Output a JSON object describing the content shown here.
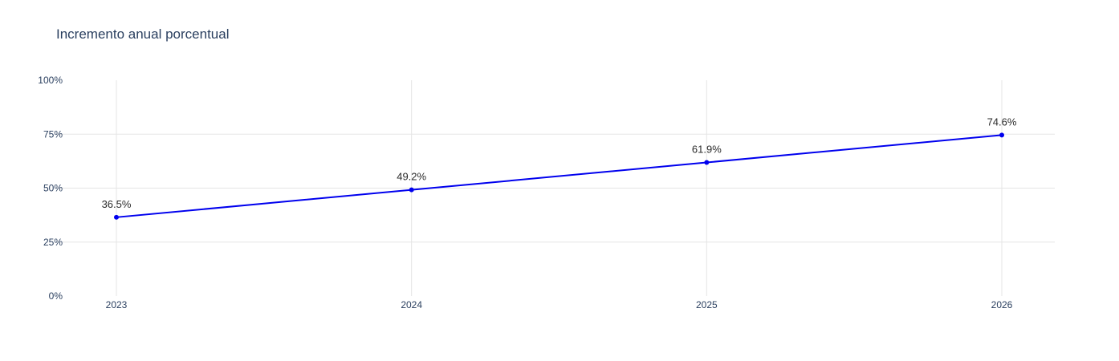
{
  "chart_data": {
    "type": "line",
    "title": "Incremento anual porcentual",
    "xlabel": "",
    "ylabel": "",
    "x": [
      "2023",
      "2024",
      "2025",
      "2026"
    ],
    "series": [
      {
        "values": [
          36.5,
          49.2,
          61.9,
          74.6
        ],
        "labels": [
          "36.5%",
          "49.2%",
          "61.9%",
          "74.6%"
        ],
        "color": "#0000ee"
      }
    ],
    "ylim": [
      0,
      100
    ],
    "yticks": [
      0,
      25,
      50,
      75,
      100
    ],
    "ytick_labels": [
      "0%",
      "25%",
      "50%",
      "75%",
      "100%"
    ],
    "grid": true,
    "markers": true
  },
  "colors": {
    "grid": "#e5e5e5",
    "axis_text": "#2a3f5f",
    "line": "#0000ee"
  }
}
